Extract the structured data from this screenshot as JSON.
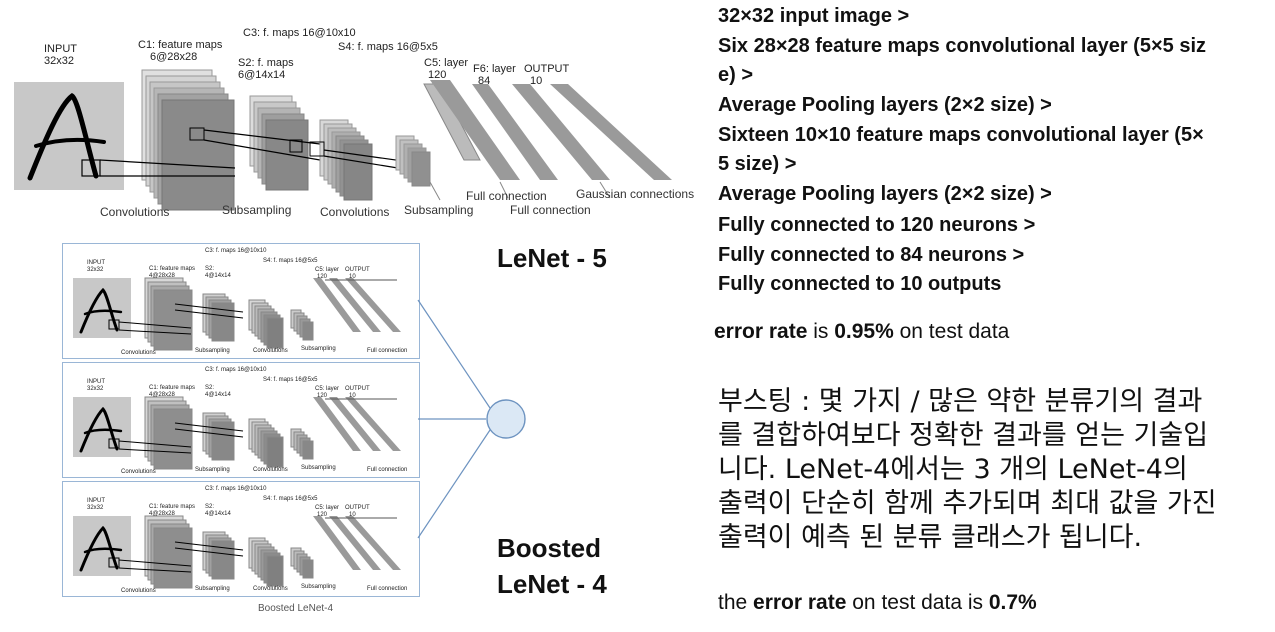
{
  "lenet5_diagram": {
    "input_label": "INPUT",
    "input_size": "32x32",
    "c1_label": "C1: feature maps",
    "c1_size": "6@28x28",
    "c3_label": "C3: f. maps 16@10x10",
    "s2_label": "S2: f. maps",
    "s2_size": "6@14x14",
    "s4_label": "S4: f. maps 16@5x5",
    "c5_label": "C5: layer",
    "c5_size": "120",
    "f6_label": "F6: layer",
    "f6_size": "84",
    "output_label": "OUTPUT",
    "output_size": "10",
    "convolutions_1": "Convolutions",
    "subsampling_1": "Subsampling",
    "convolutions_2": "Convolutions",
    "subsampling_2": "Subsampling",
    "full_connection_1": "Full connection",
    "full_connection_2": "Full connection",
    "gaussian": "Gaussian connections"
  },
  "lenet4_diagram": {
    "input_label": "INPUT",
    "input_size": "32x32",
    "c1_label": "C1: feature maps",
    "c1_size": "4@28x28",
    "c3_label": "C3: f. maps 16@10x10",
    "s2_label": "S2:",
    "s2_size": "4@14x14",
    "s4_label": "S4: f. maps 16@5x5",
    "c5_label": "C5: layer",
    "c5_size": "120",
    "output_label": "OUTPUT",
    "output_size": "10",
    "convolutions_1": "Convolutions",
    "subsampling_1": "Subsampling",
    "convolutions_2": "Convolutions",
    "subsampling_2": "Subsampling",
    "full_connection": "Full connection",
    "caption": "Boosted LeNet-4"
  },
  "titles": {
    "lenet5": "LeNet - 5",
    "boosted_line1": "Boosted",
    "boosted_line2": "LeNet - 4"
  },
  "architecture_steps": [
    "32×32 input image >",
    "Six 28×28 feature maps convolutional layer (5×5 siz",
    "e) >",
    "Average Pooling layers (2×2 size) >",
    "Sixteen 10×10 feature maps convolutional layer (5×",
    "5 size) >",
    "Average Pooling layers (2×2 size) >",
    "Fully connected to 120 neurons >",
    "Fully connected to 84 neurons >",
    "Fully connected to 10 outputs"
  ],
  "lenet5_error": {
    "term": "error rate",
    "middle": " is ",
    "value": "0.95%",
    "suffix": " on test data"
  },
  "boosting_description": "부스팅 : 몇 가지 / 많은 약한 분류기의 결과를 결합하여보다 정확한 결과를 얻는 기술입니다. LeNet-4에서는 3 개의 LeNet-4의 출력이 단순히 함께 추가되며 최대 값을 가진 출력이 예측 된 분류 클래스가 됩니다.",
  "boosted_error": {
    "prefix": "the ",
    "term": "error rate",
    "middle": " on test data is ",
    "value": "0.7%"
  },
  "colors": {
    "input_bg": "#c8c8c8",
    "feature_map_dark": "#7a7a7a",
    "feature_map_light": "#d9d9d9",
    "combiner_fill": "#dbe8f5",
    "combiner_stroke": "#6d93c0",
    "box_border": "#9ab6d6"
  }
}
